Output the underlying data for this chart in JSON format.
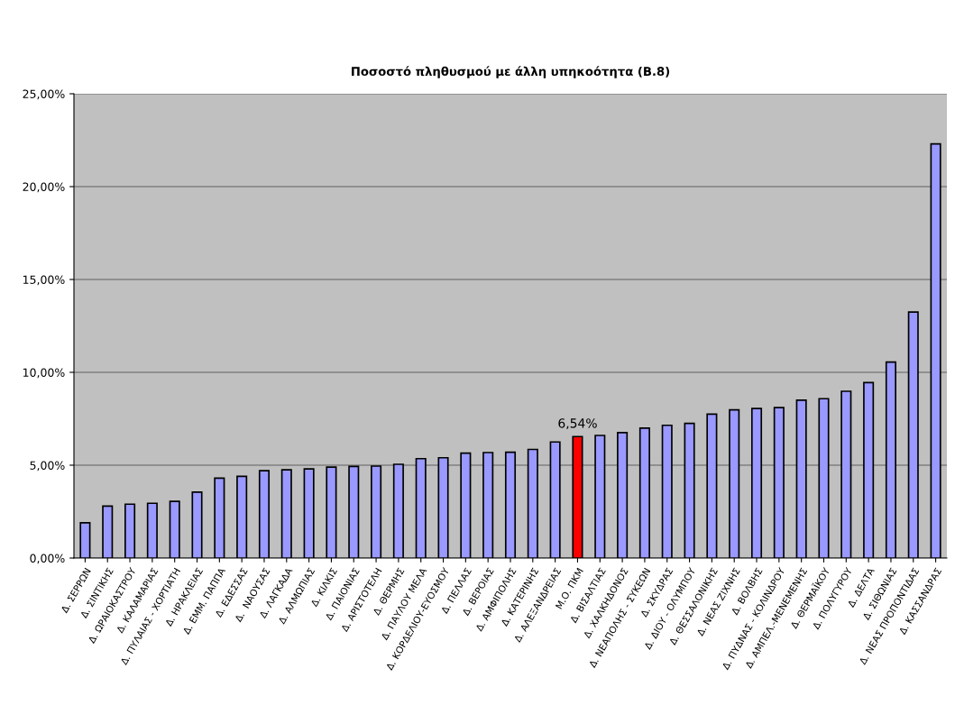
{
  "chart_data": {
    "type": "bar",
    "title": "Ποσοστό πληθυσμού με άλλη υπηκοότητα (Β.8)",
    "categories": [
      "Δ. ΣΕΡΡΩΝ",
      "Δ. ΣΙΝΤΙΚΗΣ",
      "Δ. ΩΡΑΙΟΚΑΣΤΡΟΥ",
      "Δ. ΚΑΛΑΜΑΡΙΑΣ",
      "Δ. ΠΥΛΑΙΑΣ - ΧΟΡΤΙΑΤΗ",
      "Δ. ΗΡΑΚΛΕΙΑΣ",
      "Δ. ΕΜΜ. ΠΑΠΠΑ",
      "Δ. ΕΔΕΣΣΑΣ",
      "Δ.  ΝΑΟΥΣΑΣ",
      "Δ. ΛΑΓΚΑΔΑ",
      "Δ. ΑΛΜΩΠΙΑΣ",
      "Δ. ΚΙΛΚΙΣ",
      "Δ. ΠΑΙΟΝΙΑΣ",
      "Δ. ΑΡΙΣΤΟΤΕΛΗ",
      "Δ. ΘΕΡΜΗΣ",
      "Δ. ΠΑΥΛΟΥ ΜΕΛΑ",
      "Δ. ΚΟΡΔΕΛΙΟΥ-ΕΥΟΣΜΟΥ",
      "Δ. ΠΕΛΛΑΣ",
      "Δ. ΒΕΡΟΙΑΣ",
      "Δ. ΑΜΦΙΠΟΛΗΣ",
      "Δ. ΚΑΤΕΡΙΝΗΣ",
      "Δ. ΑΛΕΞΑΝΔΡΕΙΑΣ",
      "Μ.Ο. ΠΚΜ",
      "Δ. ΒΙΣΑΛΤΙΑΣ",
      "Δ. ΧΑΛΚΗΔΟΝΟΣ",
      "Δ. ΝΕΑΠΟΛΗΣ - ΣΥΚΕΩΝ",
      "Δ. ΣΚΥΔΡΑΣ",
      "Δ. ΔΙΟΥ - ΟΛΥΜΠΟΥ",
      "Δ. ΘΕΣΣΑΛΟΝΙΚΗΣ",
      "Δ. ΝΕΑΣ ΖΙΧΝΗΣ",
      "Δ. ΒΟΛΒΗΣ",
      "Δ. ΠΥΔΝΑΣ - ΚΟΛΙΝΔΡΟΥ",
      "Δ. ΑΜΠΕΛ.-ΜΕΝΕΜΕΝΗΣ",
      "Δ. ΘΕΡΜΑΪΚΟΥ",
      "Δ. ΠΟΛΥΓΥΡΟΥ",
      "Δ. ΔΕΛΤΑ",
      "Δ. ΣΙΘΩΝΙΑΣ",
      "Δ. ΝΕΑΣ ΠΡΟΠΟΝΤΙΔΑΣ",
      "Δ. ΚΑΣΣΑΝΔΡΑΣ"
    ],
    "values": [
      1.9,
      2.8,
      2.9,
      2.95,
      3.05,
      3.55,
      4.3,
      4.4,
      4.7,
      4.75,
      4.8,
      4.9,
      4.93,
      4.95,
      5.05,
      5.35,
      5.4,
      5.65,
      5.68,
      5.7,
      5.85,
      6.25,
      6.54,
      6.6,
      6.75,
      7.0,
      7.15,
      7.25,
      7.75,
      7.98,
      8.05,
      8.1,
      8.5,
      8.58,
      8.98,
      9.45,
      10.55,
      13.25,
      22.3
    ],
    "colors": [
      "#9999ff",
      "#9999ff",
      "#9999ff",
      "#9999ff",
      "#9999ff",
      "#9999ff",
      "#9999ff",
      "#9999ff",
      "#9999ff",
      "#9999ff",
      "#9999ff",
      "#9999ff",
      "#9999ff",
      "#9999ff",
      "#9999ff",
      "#9999ff",
      "#9999ff",
      "#9999ff",
      "#9999ff",
      "#9999ff",
      "#9999ff",
      "#9999ff",
      "#ff0000",
      "#9999ff",
      "#9999ff",
      "#9999ff",
      "#9999ff",
      "#9999ff",
      "#9999ff",
      "#9999ff",
      "#9999ff",
      "#9999ff",
      "#9999ff",
      "#9999ff",
      "#9999ff",
      "#9999ff",
      "#9999ff",
      "#9999ff",
      "#9999ff"
    ],
    "value_labels": [
      null,
      null,
      null,
      null,
      null,
      null,
      null,
      null,
      null,
      null,
      null,
      null,
      null,
      null,
      null,
      null,
      null,
      null,
      null,
      null,
      null,
      null,
      "6,54%",
      null,
      null,
      null,
      null,
      null,
      null,
      null,
      null,
      null,
      null,
      null,
      null,
      null,
      null,
      null,
      null
    ],
    "ylim": [
      0,
      25
    ],
    "yticks": [
      {
        "value": 0,
        "label": "0,00%"
      },
      {
        "value": 5,
        "label": "5,00%"
      },
      {
        "value": 10,
        "label": "10,00%"
      },
      {
        "value": 15,
        "label": "15,00%"
      },
      {
        "value": 20,
        "label": "20,00%"
      },
      {
        "value": 25,
        "label": "25,00%"
      }
    ],
    "grid": "y",
    "legend": false
  }
}
